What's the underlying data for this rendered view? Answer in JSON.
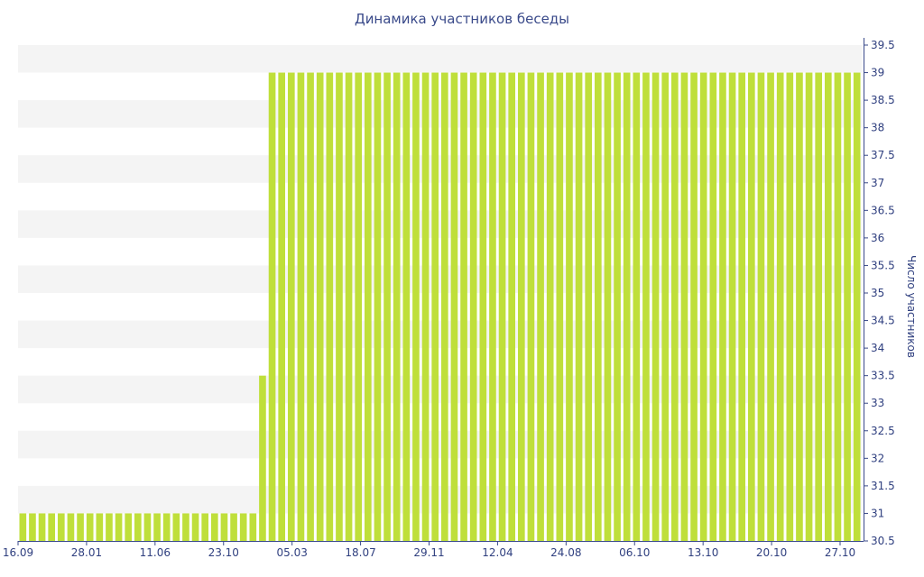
{
  "chart_data": {
    "type": "bar",
    "title": "Динамика участников беседы",
    "ylabel": "Число участников",
    "xlabel": "",
    "ylim": [
      30.5,
      39.5
    ],
    "y_ticks": [
      30.5,
      31,
      31.5,
      32,
      32.5,
      33,
      33.5,
      34,
      34.5,
      35,
      35.5,
      36,
      36.5,
      37,
      37.5,
      38,
      38.5,
      39,
      39.5
    ],
    "x_tick_labels": [
      "16.09",
      "28.01",
      "11.06",
      "23.10",
      "05.03",
      "18.07",
      "29.11",
      "12.04",
      "24.08",
      "06.10",
      "13.10",
      "20.10",
      "27.10"
    ],
    "y_axis_position": "right",
    "grid": "alternating horizontal bands",
    "bar_color": "#bfdf3a",
    "values": [
      31,
      31,
      31,
      31,
      31,
      31,
      31,
      31,
      31,
      31,
      31,
      31,
      31,
      31,
      31,
      31,
      31,
      31,
      31,
      31,
      31,
      31,
      31,
      31,
      31,
      33.5,
      39,
      39,
      39,
      39,
      39,
      39,
      39,
      39,
      39,
      39,
      39,
      39,
      39,
      39,
      39,
      39,
      39,
      39,
      39,
      39,
      39,
      39,
      39,
      39,
      39,
      39,
      39,
      39,
      39,
      39,
      39,
      39,
      39,
      39,
      39,
      39,
      39,
      39,
      39,
      39,
      39,
      39,
      39,
      39,
      39,
      39,
      39,
      39,
      39,
      39,
      39,
      39,
      39,
      39,
      39,
      39,
      39,
      39,
      39,
      39,
      39,
      39
    ]
  }
}
